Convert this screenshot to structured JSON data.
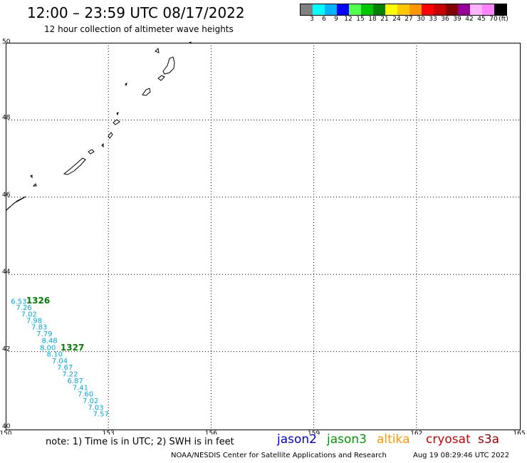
{
  "title": "12:00 – 23:59 UTC 08/17/2022",
  "subtitle": "12 hour collection of altimeter wave heights",
  "colorbar": {
    "colors": [
      "#808080",
      "#00ffff",
      "#00b4ff",
      "#0000ff",
      "#50ff50",
      "#00c800",
      "#008200",
      "#ffff00",
      "#ffc800",
      "#ff9600",
      "#ff0000",
      "#c80000",
      "#820000",
      "#960096",
      "#ffb4ff",
      "#ff82ff",
      "#000000"
    ],
    "labels": [
      "3",
      "6",
      "9",
      "12",
      "15",
      "18",
      "21",
      "24",
      "27",
      "30",
      "33",
      "36",
      "39",
      "42",
      "45",
      "70"
    ],
    "unit": "(ft)"
  },
  "axes": {
    "lon_ticks": [
      "150",
      "153",
      "156",
      "159",
      "162",
      "165"
    ],
    "lat_ticks": [
      "50",
      "48",
      "46",
      "44",
      "42",
      "40"
    ]
  },
  "tracks": [
    {
      "label": "1326",
      "color": "#008000",
      "label_lon": 150.6,
      "label_lat": 43.25
    },
    {
      "label": "1327",
      "color": "#008000",
      "label_lon": 151.6,
      "label_lat": 42.03
    }
  ],
  "wave_obs": {
    "color": "#00aadd",
    "points": [
      {
        "lon": 150.15,
        "lat": 43.24,
        "swh": "6.53"
      },
      {
        "lon": 150.3,
        "lat": 43.08,
        "swh": "7.26"
      },
      {
        "lon": 150.45,
        "lat": 42.91,
        "swh": "7.02"
      },
      {
        "lon": 150.6,
        "lat": 42.74,
        "swh": "7.98"
      },
      {
        "lon": 150.75,
        "lat": 42.57,
        "swh": "7.83"
      },
      {
        "lon": 150.9,
        "lat": 42.4,
        "swh": "7.79"
      },
      {
        "lon": 151.05,
        "lat": 42.22,
        "swh": "8.48"
      },
      {
        "lon": 151.0,
        "lat": 42.04,
        "swh": "8.00"
      },
      {
        "lon": 151.2,
        "lat": 41.87,
        "swh": "8.10"
      },
      {
        "lon": 151.35,
        "lat": 41.7,
        "swh": "7.04"
      },
      {
        "lon": 151.5,
        "lat": 41.53,
        "swh": "7.67"
      },
      {
        "lon": 151.65,
        "lat": 41.36,
        "swh": "7.22"
      },
      {
        "lon": 151.8,
        "lat": 41.18,
        "swh": "6.87"
      },
      {
        "lon": 151.95,
        "lat": 41.01,
        "swh": "7.41"
      },
      {
        "lon": 152.1,
        "lat": 40.84,
        "swh": "7.60"
      },
      {
        "lon": 152.25,
        "lat": 40.66,
        "swh": "7.02"
      },
      {
        "lon": 152.4,
        "lat": 40.49,
        "swh": "7.03"
      },
      {
        "lon": 152.55,
        "lat": 40.32,
        "swh": "7.57"
      }
    ]
  },
  "note": "note:  1) Time is in UTC;  2) SWH is in feet",
  "legend": [
    {
      "name": "jason2",
      "color": "#0000dd"
    },
    {
      "name": "jason3",
      "color": "#009900"
    },
    {
      "name": "altika",
      "color": "#ff9900"
    },
    {
      "name": "cryosat",
      "color": "#cc0000"
    },
    {
      "name": "s3a",
      "color": "#990000"
    }
  ],
  "footer": "NOAA/NESDIS Center for Satellite Applications and Research",
  "timestamp": "Aug 19 08:29:46 UTC 2022"
}
